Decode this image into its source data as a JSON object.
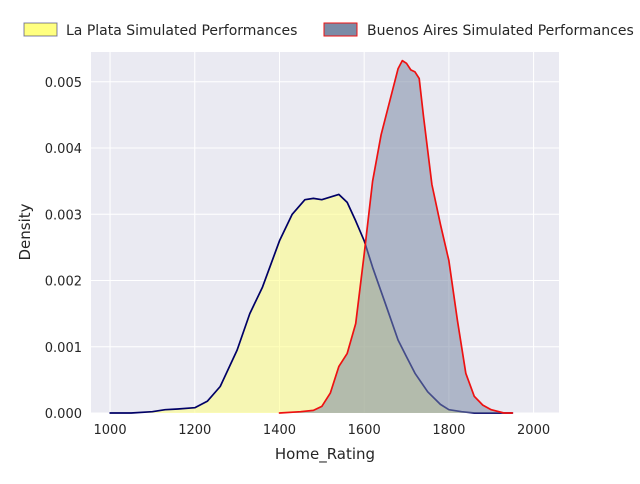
{
  "chart_data": {
    "type": "area",
    "title": "",
    "xlabel": "Home_Rating",
    "ylabel": "Density",
    "xlim": [
      955,
      2060
    ],
    "ylim": [
      0,
      0.00545
    ],
    "xticks": [
      1000,
      1200,
      1400,
      1600,
      1800,
      2000
    ],
    "yticks": [
      0.0,
      0.001,
      0.002,
      0.003,
      0.004,
      0.005
    ],
    "ytick_labels": [
      "0.000",
      "0.001",
      "0.002",
      "0.003",
      "0.004",
      "0.005"
    ],
    "grid": true,
    "legend_position": "top, above plot, two columns",
    "series": [
      {
        "name": "La Plata Simulated Performances",
        "fill_color": "#FFFF80",
        "line_color": "#000066",
        "x": [
          1000,
          1050,
          1100,
          1130,
          1160,
          1200,
          1230,
          1260,
          1300,
          1330,
          1360,
          1400,
          1430,
          1460,
          1480,
          1500,
          1520,
          1540,
          1560,
          1580,
          1600,
          1620,
          1650,
          1680,
          1700,
          1720,
          1750,
          1780,
          1800,
          1830,
          1860,
          1900,
          1950
        ],
        "y": [
          0.0,
          0.0,
          2e-05,
          5e-05,
          6e-05,
          8e-05,
          0.00018,
          0.0004,
          0.00095,
          0.0015,
          0.0019,
          0.0026,
          0.003,
          0.00322,
          0.00324,
          0.00322,
          0.00326,
          0.0033,
          0.00318,
          0.0029,
          0.0026,
          0.0022,
          0.00165,
          0.0011,
          0.00085,
          0.0006,
          0.00032,
          0.00013,
          5e-05,
          2e-05,
          0.0,
          0.0,
          0.0
        ]
      },
      {
        "name": "Buenos Aires Simulated Performances",
        "fill_color": "#7B8BA6",
        "line_color": "#EE1111",
        "x": [
          1400,
          1450,
          1480,
          1500,
          1520,
          1540,
          1560,
          1580,
          1600,
          1620,
          1640,
          1660,
          1680,
          1690,
          1700,
          1710,
          1720,
          1730,
          1740,
          1760,
          1780,
          1800,
          1820,
          1840,
          1860,
          1880,
          1900,
          1930,
          1950
        ],
        "y": [
          0.0,
          2e-05,
          4e-05,
          0.0001,
          0.0003,
          0.0007,
          0.0009,
          0.00135,
          0.0024,
          0.0035,
          0.0042,
          0.0047,
          0.0052,
          0.00532,
          0.00528,
          0.00518,
          0.00515,
          0.00505,
          0.00448,
          0.00345,
          0.00285,
          0.0023,
          0.0014,
          0.0006,
          0.00025,
          0.00012,
          5e-05,
          0.0,
          0.0
        ]
      }
    ]
  }
}
